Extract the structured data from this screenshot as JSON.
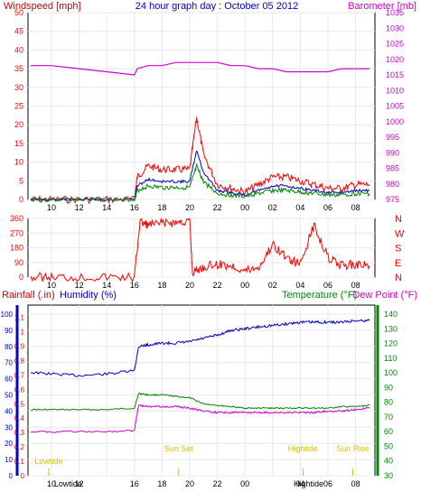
{
  "title": "24 hour graph day : October 05 2012",
  "colors": {
    "red": "#ff0000",
    "blue": "#0000cc",
    "green": "#008800",
    "magenta": "#cc00cc",
    "darkred": "#cc0000",
    "yellow": "#d8c000",
    "grid": "#e8e8e8"
  },
  "chart_data": [
    {
      "type": "line",
      "ylabel": "Windspeed [mph]",
      "y2label": "Barometer [mb]",
      "ylim": [
        0,
        50
      ],
      "y2lim": [
        975,
        1035
      ],
      "yticks": [
        "0",
        "5",
        "10",
        "15",
        "20",
        "25",
        "30",
        "35",
        "40",
        "45",
        "50"
      ],
      "y2ticks": [
        "975",
        "980",
        "985",
        "990",
        "995",
        "1000",
        "1005",
        "1010",
        "1015",
        "1020",
        "1025",
        "1030",
        "1035"
      ],
      "xticks": [
        "10",
        "12",
        "14",
        "16",
        "18",
        "20",
        "22",
        "00",
        "02",
        "04",
        "06",
        "08"
      ],
      "x": [
        8.5,
        10,
        12,
        14,
        16,
        16.2,
        17,
        18,
        19,
        20,
        20.5,
        21,
        22,
        23,
        24,
        25,
        26,
        27,
        28,
        29,
        30,
        31,
        32,
        33
      ],
      "series": [
        {
          "name": "Windspeed [mph]",
          "color": "#ff0000",
          "values": [
            0,
            0,
            0,
            0,
            0,
            6,
            9,
            8,
            8,
            8,
            22,
            12,
            4,
            3,
            2,
            4,
            6,
            6,
            5,
            4,
            3,
            3,
            4,
            4
          ]
        },
        {
          "name": "Barometer [mb]",
          "color": "#cc00cc",
          "axis": "right",
          "values": [
            1018,
            1018,
            1017,
            1016,
            1015,
            1017,
            1018,
            1018,
            1019,
            1019,
            1019,
            1019,
            1019,
            1018,
            1018,
            1017,
            1017,
            1016,
            1016,
            1016,
            1016,
            1017,
            1017,
            1017
          ]
        }
      ]
    },
    {
      "type": "line",
      "ylim": [
        0,
        360
      ],
      "yticks": [
        "0",
        "90",
        "180",
        "270",
        "360"
      ],
      "y2ticks": [
        "N",
        "E",
        "S",
        "W",
        "N"
      ],
      "xticks": [
        "10",
        "12",
        "14",
        "16",
        "18",
        "20",
        "22",
        "00",
        "02",
        "04",
        "06",
        "08"
      ],
      "x": [
        8.5,
        10,
        12,
        14,
        16,
        16.4,
        17,
        18,
        19,
        20,
        20.2,
        21,
        22,
        23,
        24,
        25,
        26,
        27,
        28,
        29,
        30,
        31,
        32,
        33
      ],
      "series": [
        {
          "name": "Wind direction",
          "color": "#ff0000",
          "values": [
            0,
            0,
            0,
            0,
            0,
            340,
            320,
            330,
            335,
            345,
            30,
            60,
            80,
            70,
            40,
            60,
            200,
            120,
            80,
            320,
            120,
            70,
            80,
            70
          ]
        }
      ]
    },
    {
      "type": "line",
      "ylabels": [
        "Rainfall (.in)",
        "Humidity (%)"
      ],
      "y2labels": [
        "Temperature (°F)",
        "Dew Point (°F)"
      ],
      "y_rain_ticks": [
        "0",
        "0.1",
        "0.2",
        "0.3",
        "0.4",
        "0.5",
        "0.6",
        "0.7",
        "0.8",
        "0.9",
        "1",
        "1.1"
      ],
      "y_hum_ticks": [
        "0",
        "10",
        "20",
        "30",
        "40",
        "50",
        "60",
        "70",
        "80",
        "90",
        "100"
      ],
      "y2ticks": [
        "30",
        "40",
        "50",
        "60",
        "70",
        "80",
        "90",
        "100",
        "110",
        "120",
        "130",
        "140"
      ],
      "xticks": [
        "10",
        "12",
        "14",
        "16",
        "18",
        "20",
        "22",
        "00",
        "02",
        "04",
        "06",
        "08"
      ],
      "x": [
        8.5,
        10,
        12,
        14,
        16,
        16.3,
        17,
        18,
        19,
        20,
        21,
        22,
        23,
        24,
        25,
        26,
        27,
        28,
        29,
        30,
        31,
        32,
        33
      ],
      "series": [
        {
          "name": "Humidity (%)",
          "color": "#0000cc",
          "values": [
            64,
            63,
            62,
            63,
            65,
            80,
            81,
            82,
            82,
            83,
            85,
            87,
            90,
            91,
            92,
            93,
            94,
            95,
            95,
            95,
            95,
            96,
            96
          ]
        },
        {
          "name": "Temperature (°F)",
          "color": "#008800",
          "values": [
            75,
            75,
            75,
            75,
            76,
            86,
            85,
            85,
            84,
            83,
            79,
            78,
            77,
            76,
            76,
            76,
            76,
            76,
            76,
            76,
            77,
            77,
            78
          ]
        },
        {
          "name": "Dew Point (°F)",
          "color": "#cc00cc",
          "values": [
            60,
            60,
            60,
            60,
            61,
            78,
            77,
            77,
            77,
            76,
            74,
            73,
            73,
            73,
            73,
            73,
            73,
            73,
            73,
            74,
            74,
            75,
            76
          ]
        }
      ],
      "events": [
        {
          "label": "Lowtide",
          "x": 9.8
        },
        {
          "label": "Sun Set",
          "x": 19.2
        },
        {
          "label": "Hightide",
          "x": 28.2
        },
        {
          "label": "Sun Rise",
          "x": 31.8
        }
      ],
      "xlabel_markers": [
        "Lowtide",
        "Hightide"
      ]
    }
  ]
}
